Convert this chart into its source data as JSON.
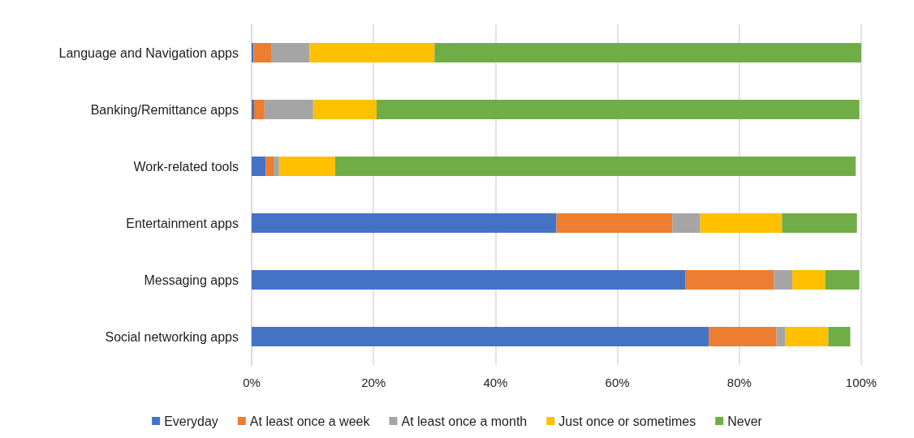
{
  "chart_data": {
    "type": "bar",
    "orientation": "horizontal",
    "stacked": true,
    "categories": [
      "Language and Navigation apps",
      "Banking/Remittance apps",
      "Work-related tools",
      "Entertainment apps",
      "Messaging apps",
      "Social networking apps"
    ],
    "series": [
      {
        "name": "Everyday",
        "color": "#4472c4",
        "values": [
          0.3,
          0.4,
          2.3,
          50.0,
          71.1,
          75.0
        ]
      },
      {
        "name": "At least once a week",
        "color": "#ed7d31",
        "values": [
          2.9,
          1.7,
          1.3,
          19.0,
          14.6,
          11.1
        ]
      },
      {
        "name": "At least once a month",
        "color": "#a5a5a5",
        "values": [
          6.3,
          8.0,
          0.9,
          4.6,
          3.0,
          1.4
        ]
      },
      {
        "name": "Just once or sometimes",
        "color": "#ffc000",
        "values": [
          20.5,
          10.4,
          9.2,
          13.4,
          5.4,
          7.1
        ]
      },
      {
        "name": "Never",
        "color": "#70ad47",
        "values": [
          70.0,
          79.2,
          85.4,
          12.3,
          5.6,
          3.6
        ]
      }
    ],
    "xlim": [
      0,
      100
    ],
    "xticks": [
      {
        "value": 0,
        "label": "0%"
      },
      {
        "value": 20,
        "label": "20%"
      },
      {
        "value": 40,
        "label": "40%"
      },
      {
        "value": 60,
        "label": "60%"
      },
      {
        "value": 80,
        "label": "80%"
      },
      {
        "value": 100,
        "label": "100%"
      }
    ],
    "grid": "x",
    "legend": "bottom"
  }
}
